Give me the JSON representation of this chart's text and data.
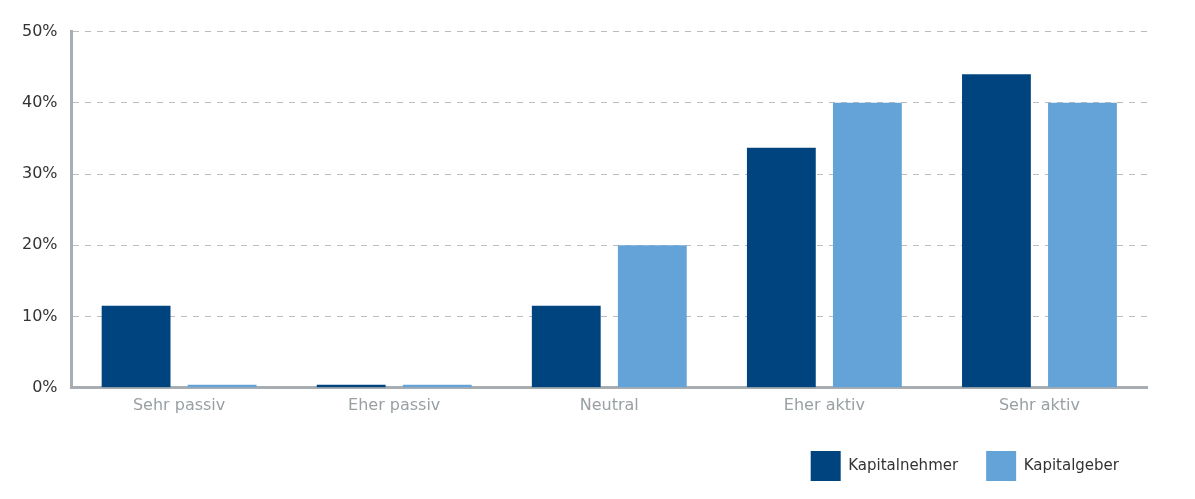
{
  "chart_data": {
    "type": "bar",
    "categories": [
      "Sehr passiv",
      "Eher passiv",
      "Neutral",
      "Eher aktiv",
      "Sehr aktiv"
    ],
    "series": [
      {
        "name": "Kapitalnehmer",
        "color": "#00447f",
        "values": [
          11.5,
          0,
          11.5,
          33.7,
          44
        ]
      },
      {
        "name": "Kapitalgeber",
        "color": "#63a3d8",
        "values": [
          0,
          0,
          20,
          40,
          40
        ]
      }
    ],
    "ylim": [
      0,
      50
    ],
    "yticks": [
      {
        "value": 0,
        "label": "0%"
      },
      {
        "value": 10,
        "label": "10%"
      },
      {
        "value": 20,
        "label": "20%"
      },
      {
        "value": 30,
        "label": "30%"
      },
      {
        "value": 40,
        "label": "40%"
      },
      {
        "value": 50,
        "label": "50%"
      }
    ],
    "grid": "y",
    "legend": "bottom right"
  }
}
